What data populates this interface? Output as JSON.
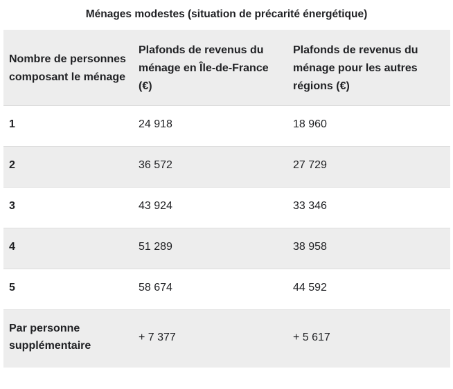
{
  "title": "Ménages modestes (situation de précarité énergétique)",
  "table": {
    "columns": [
      "Nombre de personnes composant le ménage",
      "Plafonds de revenus du ménage en Île-de-France (€)",
      "Plafonds de revenus du ménage pour les autres régions (€)"
    ],
    "rows": [
      {
        "label": "1",
        "idf": "24 918",
        "others": "18 960"
      },
      {
        "label": "2",
        "idf": "36 572",
        "others": "27 729"
      },
      {
        "label": "3",
        "idf": "43 924",
        "others": "33 346"
      },
      {
        "label": "4",
        "idf": "51 289",
        "others": "38 958"
      },
      {
        "label": "5",
        "idf": "58 674",
        "others": "44 592"
      },
      {
        "label": "Par personne supplémentaire",
        "idf": "+ 7 377",
        "others": "+ 5 617"
      }
    ]
  },
  "chart_data": {
    "type": "table",
    "title": "Ménages modestes (situation de précarité énergétique)",
    "columns": [
      "Nombre de personnes composant le ménage",
      "Plafonds de revenus du ménage en Île-de-France (€)",
      "Plafonds de revenus du ménage pour les autres régions (€)"
    ],
    "rows": [
      [
        "1",
        24918,
        18960
      ],
      [
        "2",
        36572,
        27729
      ],
      [
        "3",
        43924,
        33346
      ],
      [
        "4",
        51289,
        38958
      ],
      [
        "5",
        58674,
        44592
      ],
      [
        "Par personne supplémentaire",
        "+7377",
        "+5617"
      ]
    ],
    "layout_hints": {
      "striped_rows": true,
      "stripe_pattern": "header gray, then white/gray alternating",
      "header_position": "top"
    }
  },
  "colors": {
    "text": "#202124",
    "row_alt_bg": "#ededed",
    "row_border": "#dddddd",
    "page_bg": "#ffffff"
  }
}
